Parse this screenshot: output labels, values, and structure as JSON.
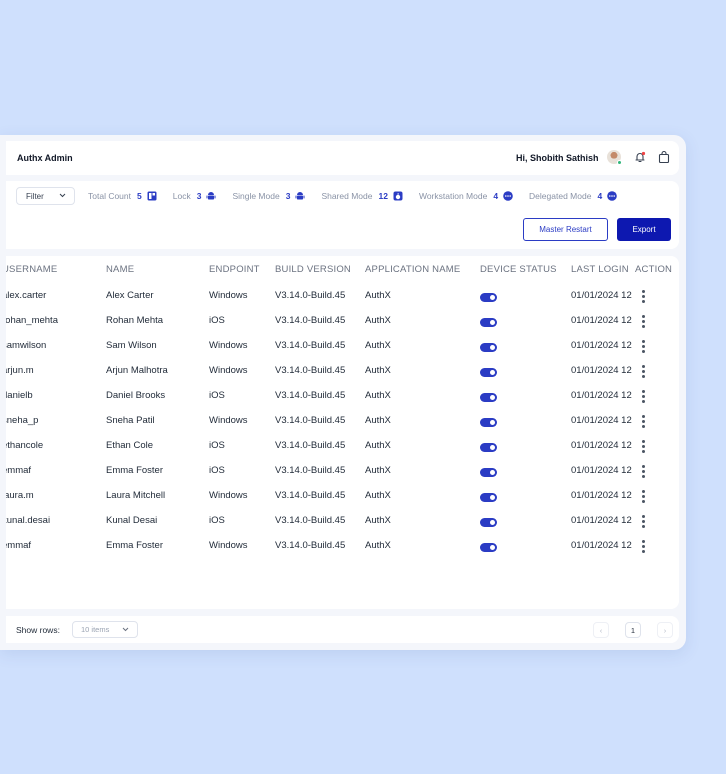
{
  "header": {
    "app_title": "Authx Admin",
    "greeting": "Hi, Shobith Sathish"
  },
  "toolbar": {
    "filter_label": "Filter",
    "stats": [
      {
        "label": "Total Count",
        "count": "5",
        "icon": "tablet-icon"
      },
      {
        "label": "Lock",
        "count": "3",
        "icon": "android-icon"
      },
      {
        "label": "Single Mode",
        "count": "3",
        "icon": "android-icon"
      },
      {
        "label": "Shared Mode",
        "count": "12",
        "icon": "apple-icon"
      },
      {
        "label": "Workstation Mode",
        "count": "4",
        "icon": "dots-circle-icon"
      },
      {
        "label": "Delegated Mode",
        "count": "4",
        "icon": "dots-circle-icon"
      }
    ],
    "master_restart_label": "Master Restart",
    "export_label": "Export"
  },
  "table": {
    "columns": [
      "USERNAME",
      "NAME",
      "ENDPOINT",
      "BUILD VERSION",
      "APPLICATION NAME",
      "DEVICE STATUS",
      "LAST LOGIN",
      "ACTION"
    ],
    "rows": [
      {
        "username": "alex.carter",
        "name": "Alex Carter",
        "endpoint": "Windows",
        "build": "V3.14.0-Build.45",
        "app": "AuthX",
        "status": "on",
        "last_login": "01/01/2024 12"
      },
      {
        "username": "rohan_mehta",
        "name": "Rohan Mehta",
        "endpoint": "iOS",
        "build": "V3.14.0-Build.45",
        "app": "AuthX",
        "status": "on",
        "last_login": "01/01/2024 12"
      },
      {
        "username": "samwilson",
        "name": "Sam Wilson",
        "endpoint": "Windows",
        "build": "V3.14.0-Build.45",
        "app": "AuthX",
        "status": "on",
        "last_login": "01/01/2024 12"
      },
      {
        "username": "arjun.m",
        "name": "Arjun Malhotra",
        "endpoint": "Windows",
        "build": "V3.14.0-Build.45",
        "app": "AuthX",
        "status": "on",
        "last_login": "01/01/2024 12"
      },
      {
        "username": "danielb",
        "name": "Daniel Brooks",
        "endpoint": "iOS",
        "build": "V3.14.0-Build.45",
        "app": "AuthX",
        "status": "on",
        "last_login": "01/01/2024 12"
      },
      {
        "username": "sneha_p",
        "name": "Sneha Patil",
        "endpoint": "Windows",
        "build": "V3.14.0-Build.45",
        "app": "AuthX",
        "status": "on",
        "last_login": "01/01/2024 12"
      },
      {
        "username": "ethancole",
        "name": "Ethan Cole",
        "endpoint": "iOS",
        "build": "V3.14.0-Build.45",
        "app": "AuthX",
        "status": "on",
        "last_login": "01/01/2024 12"
      },
      {
        "username": "emmaf",
        "name": "Emma Foster",
        "endpoint": "iOS",
        "build": "V3.14.0-Build.45",
        "app": "AuthX",
        "status": "on",
        "last_login": "01/01/2024 12"
      },
      {
        "username": "laura.m",
        "name": "Laura Mitchell",
        "endpoint": "Windows",
        "build": "V3.14.0-Build.45",
        "app": "AuthX",
        "status": "on",
        "last_login": "01/01/2024 12"
      },
      {
        "username": "kunal.desai",
        "name": "Kunal Desai",
        "endpoint": "iOS",
        "build": "V3.14.0-Build.45",
        "app": "AuthX",
        "status": "on",
        "last_login": "01/01/2024 12"
      },
      {
        "username": "emmaf",
        "name": "Emma Foster",
        "endpoint": "Windows",
        "build": "V3.14.0-Build.45",
        "app": "AuthX",
        "status": "on",
        "last_login": "01/01/2024 12"
      }
    ]
  },
  "footer": {
    "show_rows_label": "Show rows:",
    "rows_select_value": "10 items",
    "prev_label": "‹",
    "current_page": "1",
    "next_label": "›"
  },
  "colors": {
    "accent": "#2b3cc4",
    "primary_button": "#0d18b0",
    "background": "#cfe0fd"
  }
}
